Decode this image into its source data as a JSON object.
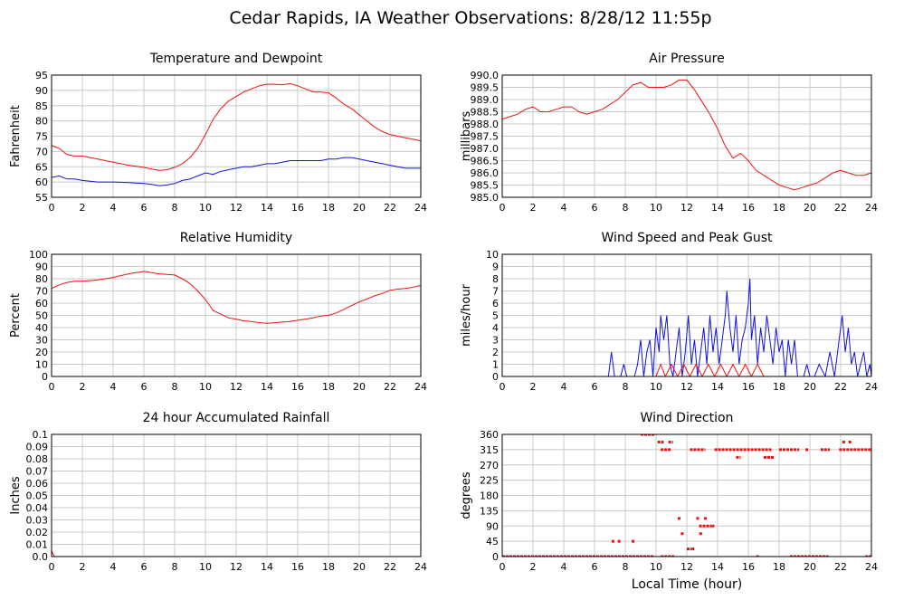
{
  "page": {
    "title": "Cedar Rapids, IA Weather Observations: 8/28/12 11:55p"
  },
  "colors": {
    "red": "#ee1111",
    "blue": "#1111dd",
    "grid": "#c8c8c8"
  },
  "chart_data": [
    {
      "id": "temperature",
      "type": "line",
      "title": "Temperature and Dewpoint",
      "ylabel": "Fahrenheit",
      "xlabel": "",
      "xlim": [
        0,
        24
      ],
      "ylim": [
        55,
        95
      ],
      "xticks": [
        0,
        2,
        4,
        6,
        8,
        10,
        12,
        14,
        16,
        18,
        20,
        22,
        24
      ],
      "yticks": [
        55,
        60,
        65,
        70,
        75,
        80,
        85,
        90,
        95
      ],
      "grid": true,
      "series": [
        {
          "color": "#ee1111",
          "x": [
            0,
            0.5,
            1,
            1.5,
            2,
            3,
            4,
            5,
            6,
            6.5,
            7,
            7.5,
            8,
            8.5,
            9,
            9.5,
            10,
            10.5,
            11,
            11.5,
            12,
            12.5,
            13,
            13.5,
            14,
            14.5,
            15,
            15.5,
            16,
            16.5,
            17,
            17.5,
            18,
            18.5,
            19,
            19.5,
            20,
            20.5,
            21,
            21.5,
            22,
            22.5,
            23,
            23.5,
            24
          ],
          "y": [
            72,
            71,
            69,
            68.5,
            68.5,
            67.5,
            66.5,
            65.5,
            64.8,
            64.2,
            63.8,
            64,
            64.8,
            66,
            68,
            71,
            75.5,
            80.5,
            84,
            86.5,
            88,
            89.5,
            90.5,
            91.5,
            92,
            92,
            91.8,
            92.2,
            91.5,
            90.5,
            89.5,
            89.5,
            89.2,
            87.5,
            85.5,
            84,
            82,
            80,
            78,
            76.5,
            75.5,
            75,
            74.5,
            74,
            73.5
          ]
        },
        {
          "color": "#1111dd",
          "x": [
            0,
            0.5,
            1,
            1.5,
            2,
            3,
            4,
            5,
            6,
            6.5,
            7,
            7.5,
            8,
            8.5,
            9,
            9.5,
            10,
            10.5,
            11,
            11.5,
            12,
            12.5,
            13,
            13.5,
            14,
            14.5,
            15,
            15.5,
            16,
            16.5,
            17,
            17.5,
            18,
            18.5,
            19,
            19.5,
            20,
            20.5,
            21,
            21.5,
            22,
            22.5,
            23,
            23.5,
            24
          ],
          "y": [
            61.5,
            62,
            61,
            61,
            60.5,
            60,
            60,
            59.8,
            59.5,
            59.2,
            58.8,
            59,
            59.5,
            60.5,
            61,
            62,
            63,
            62.5,
            63.5,
            64,
            64.5,
            65,
            65,
            65.5,
            66,
            66,
            66.5,
            67,
            67,
            67,
            67,
            67,
            67.5,
            67.5,
            68,
            68,
            67.5,
            67,
            66.5,
            66,
            65.5,
            65,
            64.5,
            64.5,
            64.5
          ]
        }
      ]
    },
    {
      "id": "pressure",
      "type": "line",
      "title": "Air Pressure",
      "ylabel": "millibars",
      "xlabel": "",
      "xlim": [
        0,
        24
      ],
      "ylim": [
        985.0,
        990.0
      ],
      "xticks": [
        0,
        2,
        4,
        6,
        8,
        10,
        12,
        14,
        16,
        18,
        20,
        22,
        24
      ],
      "yticks": [
        "985.0",
        "985.5",
        "986.0",
        "986.5",
        "987.0",
        "987.5",
        "988.0",
        "988.5",
        "989.0",
        "989.5",
        "990.0"
      ],
      "grid": true,
      "series": [
        {
          "color": "#ee1111",
          "x": [
            0,
            0.5,
            1,
            1.5,
            2,
            2.5,
            3,
            3.5,
            4,
            4.5,
            5,
            5.5,
            6,
            6.5,
            7,
            7.5,
            8,
            8.5,
            9,
            9.5,
            10,
            10.5,
            11,
            11.5,
            12,
            12.5,
            13,
            13.5,
            14,
            14.5,
            15,
            15.5,
            16,
            16.5,
            17,
            17.5,
            18,
            18.5,
            19,
            19.5,
            20,
            20.5,
            21,
            21.5,
            22,
            22.5,
            23,
            23.5,
            24
          ],
          "y": [
            988.2,
            988.3,
            988.4,
            988.6,
            988.7,
            988.5,
            988.5,
            988.6,
            988.7,
            988.7,
            988.5,
            988.4,
            988.5,
            988.6,
            988.8,
            989.0,
            989.3,
            989.6,
            989.7,
            989.5,
            989.5,
            989.5,
            989.6,
            989.8,
            989.8,
            989.4,
            988.9,
            988.4,
            987.8,
            987.1,
            986.6,
            986.8,
            986.5,
            986.1,
            985.9,
            985.7,
            985.5,
            985.4,
            985.3,
            985.4,
            985.5,
            985.6,
            985.8,
            986.0,
            986.1,
            986.0,
            985.9,
            985.9,
            986.0
          ]
        }
      ]
    },
    {
      "id": "humidity",
      "type": "line",
      "title": "Relative Humidity",
      "ylabel": "Percent",
      "xlabel": "",
      "xlim": [
        0,
        24
      ],
      "ylim": [
        0,
        100
      ],
      "xticks": [
        0,
        2,
        4,
        6,
        8,
        10,
        12,
        14,
        16,
        18,
        20,
        22,
        24
      ],
      "yticks": [
        0,
        10,
        20,
        30,
        40,
        50,
        60,
        70,
        80,
        90,
        100
      ],
      "grid": true,
      "series": [
        {
          "color": "#ee1111",
          "x": [
            0,
            0.5,
            1,
            1.5,
            2,
            3,
            4,
            5,
            5.5,
            6,
            6.5,
            7,
            7.5,
            8,
            8.5,
            9,
            9.5,
            10,
            10.5,
            11,
            11.5,
            12,
            12.5,
            13,
            13.5,
            14,
            14.5,
            15,
            15.5,
            16,
            16.5,
            17,
            17.5,
            18,
            18.5,
            19,
            19.5,
            20,
            20.5,
            21,
            21.5,
            22,
            22.5,
            23,
            23.5,
            24
          ],
          "y": [
            72,
            75,
            77,
            78,
            78,
            79,
            81,
            84,
            85,
            86,
            85,
            84,
            83.5,
            83,
            80,
            76,
            70,
            63,
            54,
            51,
            48,
            47,
            45.5,
            45,
            44,
            43.5,
            44,
            44.5,
            45,
            46,
            47,
            48,
            49.5,
            50,
            52,
            55,
            58,
            61,
            63.5,
            66,
            68,
            70.5,
            71.5,
            72,
            73,
            74.5
          ]
        }
      ]
    },
    {
      "id": "wind-speed",
      "type": "line",
      "title": "Wind Speed and Peak Gust",
      "ylabel": "miles/hour",
      "xlabel": "",
      "xlim": [
        0,
        24
      ],
      "ylim": [
        0,
        10
      ],
      "xticks": [
        0,
        2,
        4,
        6,
        8,
        10,
        12,
        14,
        16,
        18,
        20,
        22,
        24
      ],
      "yticks": [
        0,
        1,
        2,
        3,
        4,
        5,
        6,
        7,
        8,
        9,
        10
      ],
      "grid": true,
      "series": [
        {
          "color": "#1111dd",
          "x": [
            0,
            6.9,
            7.1,
            7.3,
            7.7,
            7.9,
            8.1,
            8.6,
            8.8,
            9.0,
            9.2,
            9.4,
            9.6,
            9.8,
            10.0,
            10.2,
            10.3,
            10.5,
            10.7,
            10.9,
            11.1,
            11.3,
            11.5,
            11.7,
            11.9,
            12.1,
            12.3,
            12.5,
            12.7,
            12.9,
            13.1,
            13.3,
            13.5,
            13.7,
            13.9,
            14.1,
            14.3,
            14.5,
            14.6,
            14.8,
            15.0,
            15.2,
            15.4,
            15.6,
            15.8,
            16.0,
            16.1,
            16.2,
            16.4,
            16.6,
            16.8,
            17.0,
            17.2,
            17.4,
            17.6,
            17.8,
            18.0,
            18.2,
            18.4,
            18.6,
            18.8,
            19.0,
            19.2,
            19.6,
            19.8,
            20.0,
            20.3,
            20.6,
            21.0,
            21.3,
            21.6,
            21.9,
            22.1,
            22.3,
            22.5,
            22.7,
            22.9,
            23.1,
            23.3,
            23.5,
            23.7,
            23.9,
            24
          ],
          "y": [
            0,
            0,
            2,
            0,
            0,
            1,
            0,
            0,
            1,
            3,
            0,
            2,
            3,
            0,
            4,
            2,
            5,
            3,
            5,
            1,
            0,
            2,
            4,
            0,
            2,
            5,
            1,
            3,
            0,
            2,
            4,
            1,
            5,
            2,
            4,
            1,
            3,
            5,
            7,
            4,
            2,
            5,
            1,
            3,
            4,
            6,
            8,
            3,
            5,
            1,
            4,
            2,
            5,
            3,
            1,
            4,
            2,
            3,
            0,
            3,
            1,
            3,
            0,
            0,
            1,
            0,
            0,
            1,
            0,
            2,
            0,
            3,
            5,
            2,
            4,
            1,
            2,
            0,
            1,
            2,
            0,
            1,
            0
          ]
        },
        {
          "color": "#ee1111",
          "x": [
            0,
            10.0,
            10.3,
            10.6,
            11.0,
            11.4,
            11.8,
            12.2,
            12.6,
            13.0,
            13.4,
            13.8,
            14.2,
            14.6,
            15.0,
            15.4,
            15.8,
            16.2,
            16.6,
            17.0,
            17.4,
            24
          ],
          "y": [
            0,
            0,
            1,
            0,
            1,
            0,
            1,
            0,
            1,
            0,
            1,
            0,
            1,
            0,
            1,
            0,
            1,
            0,
            1,
            0,
            0,
            0
          ]
        }
      ]
    },
    {
      "id": "rainfall",
      "type": "line",
      "title": "24 hour Accumulated Rainfall",
      "ylabel": "Inches",
      "xlabel": "",
      "xlim": [
        0,
        24
      ],
      "ylim": [
        0,
        0.1
      ],
      "xticks": [
        0,
        2,
        4,
        6,
        8,
        10,
        12,
        14,
        16,
        18,
        20,
        22,
        24
      ],
      "yticks": [
        "0.0",
        "0.01",
        "0.02",
        "0.03",
        "0.04",
        "0.05",
        "0.06",
        "0.07",
        "0.08",
        "0.09",
        "0.1"
      ],
      "grid": true,
      "series": [
        {
          "color": "#ee1111",
          "x": [
            0,
            0.05,
            0.2,
            24
          ],
          "y": [
            0.005,
            0.003,
            0,
            0
          ]
        }
      ]
    },
    {
      "id": "wind-direction",
      "type": "scatter",
      "title": "Wind Direction",
      "ylabel": "degrees",
      "xlabel": "Local Time (hour)",
      "xlim": [
        0,
        24
      ],
      "ylim": [
        0,
        360
      ],
      "xticks": [
        0,
        2,
        4,
        6,
        8,
        10,
        12,
        14,
        16,
        18,
        20,
        22,
        24
      ],
      "yticks": [
        0,
        45,
        90,
        135,
        180,
        225,
        270,
        315,
        360
      ],
      "grid": true,
      "series": [
        {
          "color": "#ee1111",
          "segments": [
            {
              "x0": 0,
              "x1": 9.9,
              "y": 0
            },
            {
              "x0": 10.3,
              "x1": 11.2,
              "y": 0
            },
            {
              "x0": 18.7,
              "x1": 21.2,
              "y": 0
            },
            {
              "x0": 23.6,
              "x1": 24,
              "y": 0
            },
            {
              "x0": 9.0,
              "x1": 9.9,
              "y": 360
            },
            {
              "x0": 10.1,
              "x1": 10.5,
              "y": 337.5
            },
            {
              "x0": 10.8,
              "x1": 11.1,
              "y": 337.5
            },
            {
              "x0": 10.3,
              "x1": 11.0,
              "y": 315
            },
            {
              "x0": 12.2,
              "x1": 13.2,
              "y": 315
            },
            {
              "x0": 13.8,
              "x1": 17.5,
              "y": 315
            },
            {
              "x0": 18.0,
              "x1": 19.3,
              "y": 315
            },
            {
              "x0": 20.7,
              "x1": 21.3,
              "y": 315
            },
            {
              "x0": 21.9,
              "x1": 24,
              "y": 315
            },
            {
              "x0": 15.2,
              "x1": 15.5,
              "y": 292.5
            },
            {
              "x0": 17.0,
              "x1": 17.7,
              "y": 292.5
            },
            {
              "x0": 12.8,
              "x1": 13.6,
              "y": 90
            },
            {
              "x0": 12.0,
              "x1": 12.3,
              "y": 22.5
            }
          ],
          "x": [
            7.2,
            7.6,
            8.5,
            12.7,
            13.2,
            13.7,
            11.5,
            12.9,
            16.6,
            19.8,
            22.2,
            22.6,
            12.4,
            11.7
          ],
          "y": [
            45,
            45,
            45,
            112.5,
            112.5,
            90,
            112.5,
            67.5,
            0,
            315,
            337.5,
            337.5,
            22.5,
            67.5
          ]
        }
      ]
    }
  ]
}
